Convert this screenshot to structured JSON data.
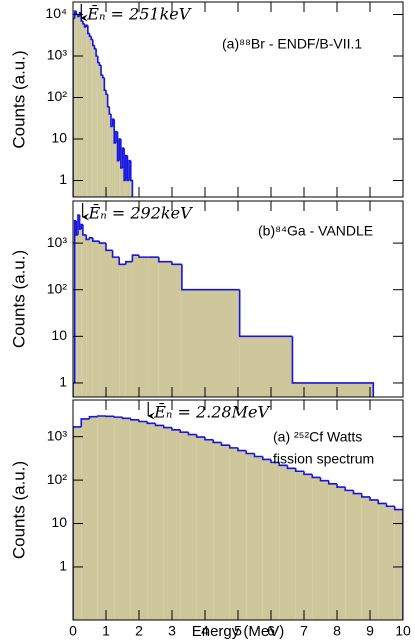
{
  "chart_data": [
    {
      "type": "histogram",
      "ylabel": "Counts (a.u.)",
      "legend": [
        "(a)⁸⁸Br - ENDF/B-VII.1"
      ],
      "annotation": "Ēₙ = 251keV",
      "marker_x": 0.251,
      "xlim": [
        0,
        10
      ],
      "xticks": [
        0,
        1,
        2,
        3,
        4,
        5,
        6,
        7,
        8,
        9,
        10
      ],
      "ylim": [
        0.4,
        20000
      ],
      "log_y": true,
      "yticks": [
        1,
        10,
        {
          "value": 100,
          "label": "10²"
        },
        {
          "value": 1000,
          "label": "10³"
        },
        {
          "value": 10000,
          "label": "10⁴"
        }
      ],
      "fill": "#cdc79b",
      "color": "#1515e0",
      "bins": [
        0,
        0.05,
        0.1,
        0.15,
        0.2,
        0.25,
        0.3,
        0.35,
        0.4,
        0.45,
        0.5,
        0.55,
        0.6,
        0.65,
        0.7,
        0.75,
        0.8,
        0.85,
        0.9,
        0.95,
        1.0,
        1.05,
        1.1,
        1.15,
        1.2,
        1.25,
        1.3,
        1.35,
        1.4,
        1.45,
        1.5,
        1.55,
        1.6,
        1.65,
        1.7,
        1.75,
        1.8
      ],
      "values": [
        8000,
        12000,
        10000,
        9000,
        11000,
        7000,
        6000,
        5000,
        5500,
        3500,
        3000,
        2500,
        1800,
        1500,
        1000,
        700,
        600,
        350,
        300,
        150,
        120,
        60,
        40,
        20,
        30,
        8,
        15,
        3,
        10,
        2,
        6,
        1,
        4,
        1,
        3,
        1
      ]
    },
    {
      "type": "histogram",
      "ylabel": "Counts (a.u.)",
      "legend": [
        "(b)⁸⁴Ga - VANDLE"
      ],
      "annotation": "Ēₙ = 292keV",
      "marker_x": 0.292,
      "xlim": [
        0,
        10
      ],
      "xticks": [
        0,
        1,
        2,
        3,
        4,
        5,
        6,
        7,
        8,
        9,
        10
      ],
      "ylim": [
        0.5,
        8000
      ],
      "log_y": true,
      "yticks": [
        1,
        10,
        {
          "value": 100,
          "label": "10²"
        },
        {
          "value": 1000,
          "label": "10³"
        }
      ],
      "fill": "#cdc79b",
      "color": "#1515e0",
      "bins": [
        0,
        0.05,
        0.1,
        0.15,
        0.2,
        0.25,
        0.3,
        0.4,
        0.5,
        0.6,
        0.8,
        1.0,
        1.2,
        1.4,
        1.6,
        1.8,
        2.0,
        2.3,
        2.6,
        3.0,
        3.3,
        5.05,
        6.65,
        9.1
      ],
      "values": [
        1,
        3000,
        1500,
        4000,
        2000,
        2500,
        1500,
        1200,
        1300,
        1100,
        1000,
        700,
        500,
        350,
        400,
        550,
        500,
        500,
        400,
        350,
        100,
        10,
        1
      ]
    },
    {
      "type": "histogram",
      "ylabel": "Counts (a.u.)",
      "xlabel": "Energy (MeV)",
      "legend": [
        "(a) ²⁵²Cf Watts",
        "fission spectrum"
      ],
      "annotation": "Ēₙ = 2.28MeV",
      "marker_x": 2.28,
      "xlim": [
        0,
        10
      ],
      "xticks": [
        0,
        1,
        2,
        3,
        4,
        5,
        6,
        7,
        8,
        9,
        10
      ],
      "ylim": [
        0.06,
        7000
      ],
      "log_y": true,
      "yticks": [
        1,
        10,
        {
          "value": 100,
          "label": "10²"
        },
        {
          "value": 1000,
          "label": "10³"
        }
      ],
      "fill": "#cdc79b",
      "color": "#1515e0",
      "bins": [
        0,
        0.25,
        0.5,
        0.75,
        1,
        1.25,
        1.5,
        1.75,
        2,
        2.25,
        2.5,
        2.75,
        3,
        3.25,
        3.5,
        3.75,
        4,
        4.25,
        4.5,
        4.75,
        5,
        5.25,
        5.5,
        5.75,
        6,
        6.25,
        6.5,
        6.75,
        7,
        7.25,
        7.5,
        7.75,
        8,
        8.25,
        8.5,
        8.75,
        9,
        9.25,
        9.5,
        9.75,
        10
      ],
      "values": [
        1681,
        2560,
        2895,
        2996,
        2951,
        2824,
        2649,
        2451,
        2238,
        2028,
        1820,
        1622,
        1439,
        1273,
        1119,
        980,
        850,
        736,
        638,
        553,
        479,
        410,
        350,
        299,
        256,
        219,
        187,
        160,
        136,
        115,
        97,
        82,
        69,
        58,
        49,
        41,
        35,
        29,
        25,
        21
      ]
    }
  ]
}
